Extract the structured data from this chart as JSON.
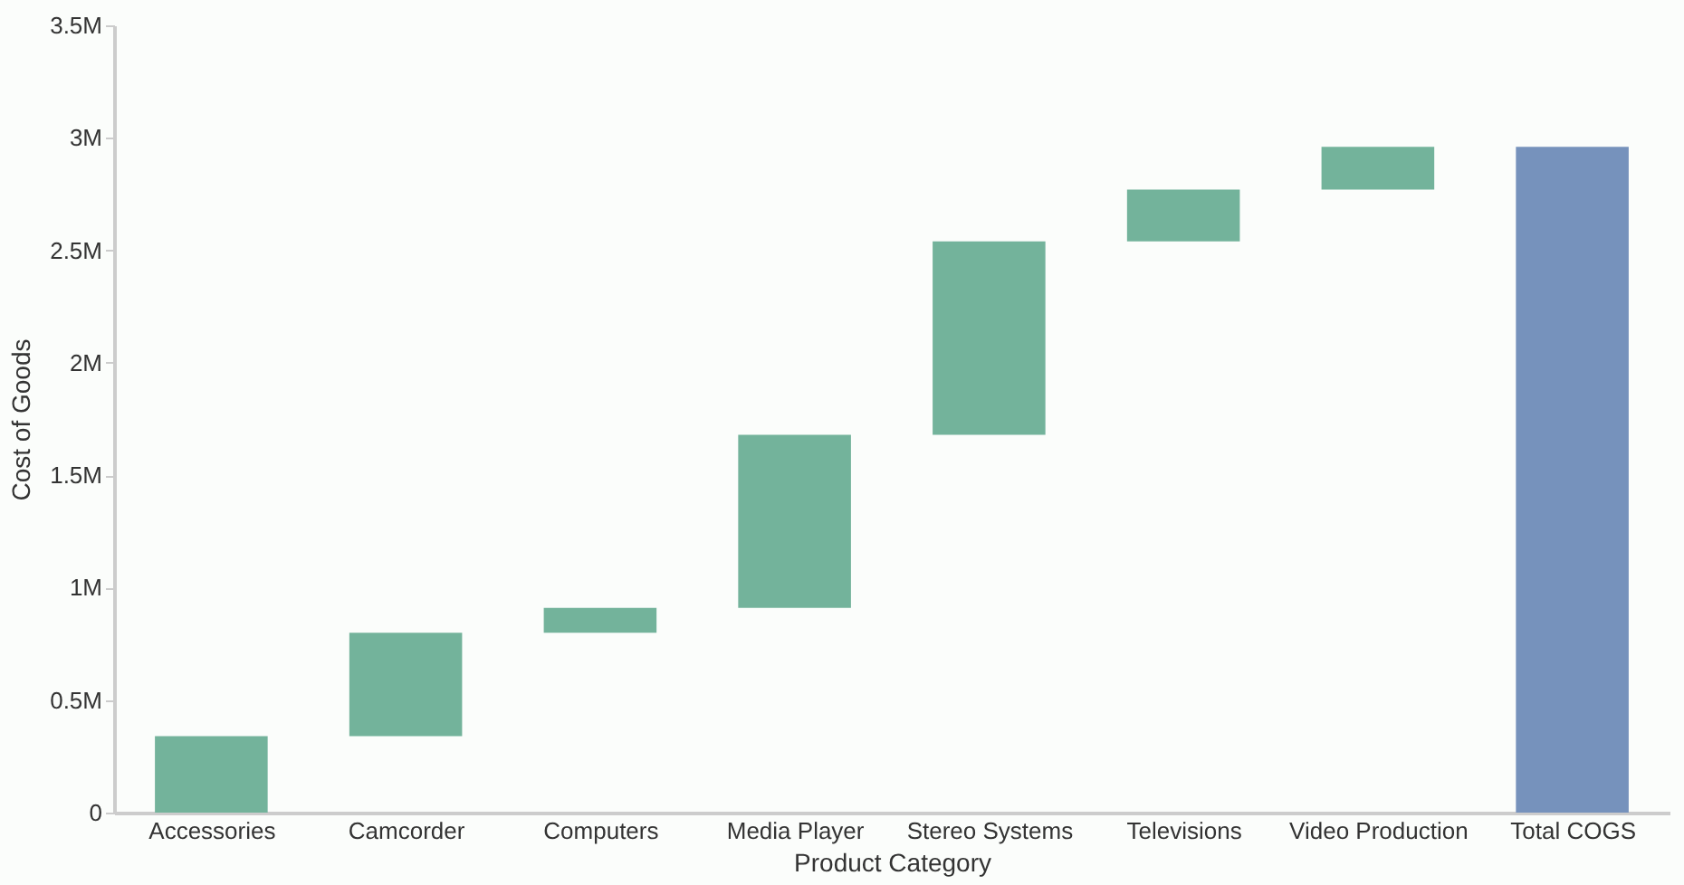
{
  "chart_data": {
    "type": "bar",
    "xlabel": "Product Category",
    "ylabel": "Cost of Goods",
    "categories": [
      "Accessories",
      "Camcorder",
      "Computers",
      "Media Player",
      "Stereo Systems",
      "Televisions",
      "Video Production",
      "Total COGS"
    ],
    "values": [
      340000,
      460000,
      110000,
      770000,
      860000,
      230000,
      190000,
      2960000
    ],
    "base": [
      0,
      340000,
      800000,
      910000,
      1680000,
      2540000,
      2770000,
      0
    ],
    "colors": [
      "#73b39b",
      "#73b39b",
      "#73b39b",
      "#73b39b",
      "#73b39b",
      "#73b39b",
      "#73b39b",
      "#7692bc"
    ],
    "ylim": [
      0,
      3500000
    ],
    "yticks": [
      0,
      {
        "value": 500000,
        "label": "0.5M"
      },
      {
        "value": 1000000,
        "label": "1M"
      },
      {
        "value": 1500000,
        "label": "1.5M"
      },
      {
        "value": 2000000,
        "label": "2M"
      },
      {
        "value": 2500000,
        "label": "2.5M"
      },
      {
        "value": 3000000,
        "label": "3M"
      },
      {
        "value": 3500000,
        "label": "3.5M"
      }
    ]
  }
}
